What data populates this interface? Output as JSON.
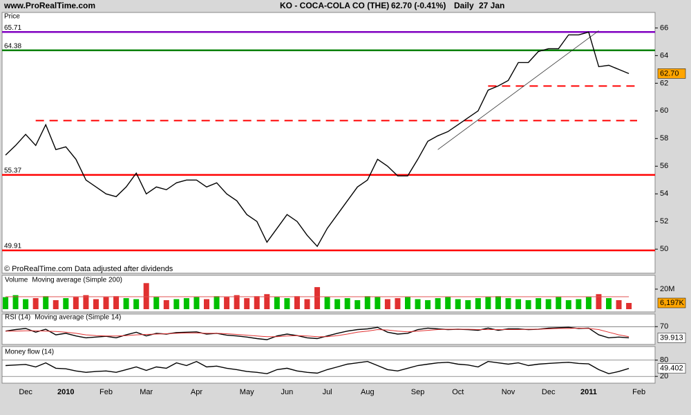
{
  "chart_data": [
    {
      "type": "line",
      "source": "www.ProRealTime.com",
      "title": "KO - COCA-COLA CO (THE)",
      "change": "62.70 (-0.41%)",
      "period": "Daily",
      "date": "27 Jan",
      "y_label": "Price",
      "note": "© ProRealTime.com  Data adjusted after dividends",
      "ylim": [
        48.51,
        66.62
      ],
      "yticks": [
        50,
        52,
        54,
        56,
        58,
        60,
        62,
        64,
        66
      ],
      "series": [
        {
          "name": "KO",
          "color": "#000000",
          "values": [
            56.8,
            57.5,
            58.3,
            57.5,
            59.0,
            57.2,
            57.4,
            56.5,
            55.0,
            54.5,
            54.0,
            53.8,
            54.5,
            55.5,
            54.0,
            54.5,
            54.3,
            54.8,
            55.0,
            55.0,
            54.5,
            54.8,
            54.0,
            53.5,
            52.5,
            52.0,
            50.5,
            51.5,
            52.5,
            52.0,
            51.0,
            50.2,
            51.5,
            52.5,
            53.5,
            54.5,
            55.0,
            56.5,
            56.0,
            55.3,
            55.3,
            56.5,
            57.8,
            58.2,
            58.5,
            59.0,
            59.5,
            60.0,
            61.5,
            61.8,
            62.2,
            63.5,
            63.5,
            64.3,
            64.5,
            64.5,
            65.5,
            65.5,
            65.7,
            63.2,
            63.3,
            63.0,
            62.7,
            null
          ]
        }
      ],
      "last_label": "62.70",
      "last_color": "#ffa500",
      "levels": [
        {
          "value": 65.71,
          "color": "#8000c0"
        },
        {
          "value": 64.38,
          "color": "#008000"
        },
        {
          "value": 55.37,
          "color": "#ff0000"
        },
        {
          "value": 49.91,
          "color": "#ff0000"
        }
      ],
      "dashed_levels": [
        {
          "value": 61.8,
          "from": 48,
          "color": "#ff0000"
        },
        {
          "value": 59.3,
          "from": 3,
          "color": "#ff0000"
        }
      ],
      "trendline": {
        "from": [
          43,
          57.2
        ],
        "to": [
          59,
          65.8
        ]
      }
    },
    {
      "type": "bar",
      "ylim": [
        0,
        33.8
      ],
      "yticks": [
        {
          "value": 20,
          "label": "20M"
        }
      ],
      "up_color": "#00c000",
      "down_color": "#e03030",
      "series": [
        {
          "name": "Volume",
          "color": "#c04040",
          "values": [
            12,
            14,
            10,
            11,
            13,
            9,
            11,
            12,
            14,
            10,
            12,
            13,
            11,
            10,
            26,
            12,
            9,
            10,
            11,
            12,
            10,
            13,
            12,
            14,
            11,
            13,
            15,
            12,
            11,
            13,
            10,
            22,
            12,
            10,
            11,
            9,
            13,
            12,
            10,
            11,
            12,
            10,
            9,
            11,
            12,
            10,
            9,
            11,
            12,
            13,
            11,
            10,
            9,
            11,
            10,
            12,
            9,
            10,
            12,
            15,
            11,
            9,
            6.197,
            null
          ]
        },
        {
          "name": "Moving average (Simple 200)",
          "color": "#e05050",
          "values": [
            12.4,
            12.4,
            12.4,
            12.4,
            12.4,
            12.4,
            12.4,
            12.4,
            12.4,
            12.4,
            12.4,
            12.4,
            12.4,
            12.4,
            12.4,
            12.4,
            12.4,
            12.4,
            12.4,
            12.4,
            12.4,
            12.4,
            12.4,
            12.4,
            12.4,
            12.4,
            12.4,
            12.4,
            12.4,
            12.4,
            12.4,
            12.4,
            12.4,
            12.4,
            12.4,
            12.4,
            12.4,
            12.4,
            12.4,
            12.4,
            12.4,
            12.4,
            12.4,
            12.4,
            12.4,
            12.4,
            12.4,
            12.4,
            12.4,
            12.4,
            12.4,
            12.4,
            12.4,
            12.4,
            12.4,
            12.4,
            12.4,
            12.4,
            12.4,
            12.4,
            12.4,
            12.4,
            12.4,
            null
          ]
        }
      ],
      "last_label": "6,197K",
      "last_color": "#ffa500"
    },
    {
      "type": "line",
      "ylim": [
        24,
        102
      ],
      "yticks": [
        70
      ],
      "series": [
        {
          "name": "RSI (14)",
          "color": "#000000",
          "values": [
            58,
            62,
            65,
            55,
            63,
            48,
            52,
            45,
            40,
            42,
            44,
            40,
            48,
            55,
            45,
            52,
            50,
            54,
            55,
            56,
            50,
            52,
            47,
            45,
            42,
            38,
            35,
            45,
            50,
            46,
            40,
            38,
            45,
            52,
            58,
            62,
            64,
            68,
            55,
            50,
            52,
            62,
            66,
            64,
            62,
            63,
            62,
            60,
            66,
            60,
            64,
            64,
            62,
            63,
            66,
            67,
            68,
            65,
            66,
            48,
            40,
            42,
            39.913,
            null
          ]
        },
        {
          "name": "Moving average (Simple 14)",
          "color": "#e03030",
          "values": [
            58,
            58,
            59,
            59,
            58,
            57,
            55,
            52,
            48,
            46,
            45,
            45,
            46,
            48,
            49,
            50,
            51,
            52,
            53,
            53,
            52,
            52,
            51,
            49,
            47,
            45,
            43,
            43,
            45,
            46,
            45,
            43,
            43,
            46,
            50,
            55,
            58,
            62,
            61,
            58,
            56,
            58,
            60,
            62,
            63,
            63,
            63,
            62,
            62,
            62,
            62,
            62,
            63,
            63,
            64,
            65,
            65,
            66,
            65,
            62,
            55,
            48,
            43,
            null
          ]
        }
      ]
    },
    {
      "type": "line",
      "ylim": [
        0,
        120
      ],
      "yticks": [
        80,
        20
      ],
      "series": [
        {
          "name": "Money flow (14)",
          "color": "#000000",
          "values": [
            60,
            62,
            64,
            55,
            70,
            50,
            48,
            40,
            35,
            38,
            40,
            35,
            45,
            55,
            42,
            55,
            50,
            70,
            60,
            75,
            55,
            58,
            50,
            45,
            38,
            35,
            30,
            45,
            50,
            40,
            35,
            32,
            45,
            55,
            65,
            70,
            75,
            60,
            45,
            40,
            50,
            60,
            65,
            70,
            72,
            65,
            62,
            55,
            75,
            70,
            65,
            70,
            60,
            65,
            68,
            70,
            72,
            68,
            66,
            45,
            30,
            38,
            49.402,
            null
          ]
        }
      ],
      "categories": [
        null,
        null,
        "Dec",
        null,
        null,
        null,
        "2010",
        null,
        null,
        null,
        "Feb",
        null,
        null,
        null,
        "Mar",
        null,
        null,
        null,
        null,
        "Apr",
        null,
        null,
        null,
        null,
        "May",
        null,
        null,
        null,
        "Jun",
        null,
        null,
        null,
        "Jul",
        null,
        null,
        null,
        "Aug",
        null,
        null,
        null,
        null,
        "Sep",
        null,
        null,
        null,
        "Oct",
        null,
        null,
        null,
        null,
        "Nov",
        null,
        null,
        null,
        "Dec",
        null,
        null,
        null,
        "2011",
        null,
        null,
        null,
        null,
        "Feb"
      ]
    }
  ]
}
